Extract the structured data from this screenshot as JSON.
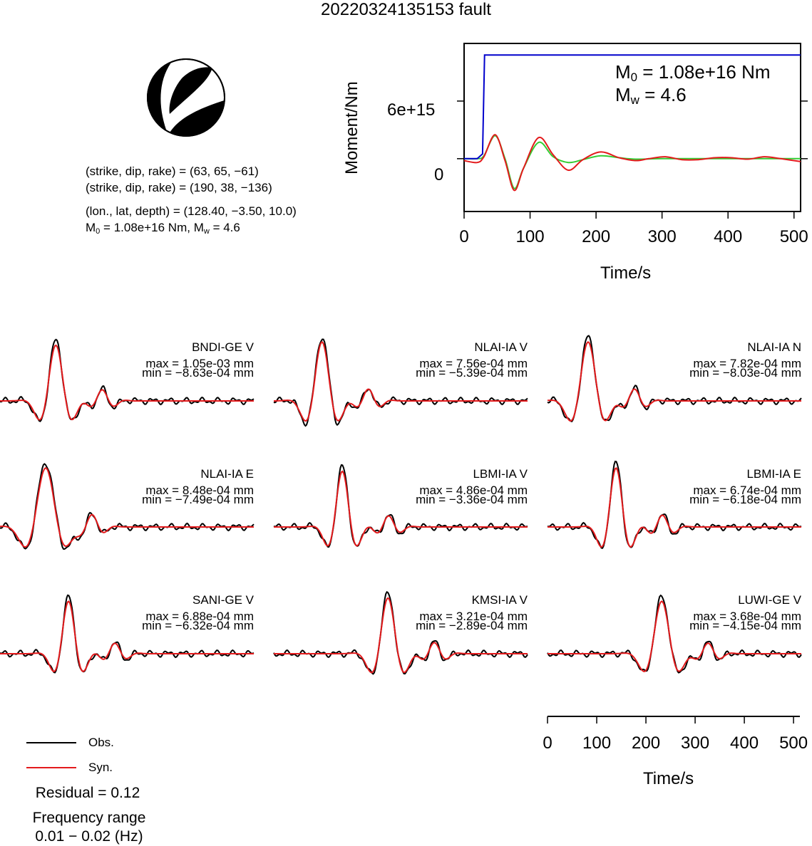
{
  "title": "20220324135153 fault",
  "focal": {
    "np1": "(strike, dip, rake) = (63, 65, −61)",
    "np2": "(strike, dip, rake) = (190, 38, −136)",
    "location": "(lon., lat, depth) = (128.40, −3.50, 10.0)",
    "m0_prefix": "M",
    "m0_sub": "0",
    "m0_mid": " = 1.08e+16 Nm, M",
    "mw_sub": "w",
    "mw_val": " = 4.6"
  },
  "moment_panel": {
    "ylabel": "Moment/Nm",
    "xlabel": "Time/s",
    "ytick_labels": [
      "6e+15",
      "0"
    ],
    "xtick_labels": [
      "0",
      "100",
      "200",
      "300",
      "400",
      "500"
    ],
    "m0_label_prefix": "M",
    "m0_label_sub": "0",
    "m0_label_val": " = 1.08e+16 Nm",
    "mw_label_prefix": "M",
    "mw_label_sub": "w",
    "mw_label_val": " = 4.6"
  },
  "waveform_axis": {
    "xlabel": "Time/s",
    "xtick_labels": [
      "0",
      "100",
      "200",
      "300",
      "400",
      "500"
    ]
  },
  "legend": {
    "obs": "Obs.",
    "syn": "Syn."
  },
  "residual": "Residual = 0.12",
  "freq_title": "Frequency range",
  "freq_range": "0.01 − 0.02 (Hz)",
  "colors": {
    "obs": "#000000",
    "syn": "#e31a1c",
    "moment": "#0000cc",
    "stf_green": "#33cc33"
  },
  "chart_data": [
    {
      "type": "line",
      "ylabel": "Moment/Nm",
      "xlabel": "Time/s",
      "xlim": [
        0,
        510
      ],
      "ylim": [
        -5500000000000000.0,
        1.2e+16
      ],
      "series": [
        {
          "color": "blue",
          "x": [
            0,
            20,
            28,
            31,
            510
          ],
          "y": [
            0,
            0,
            500000000000000.0,
            1.08e+16,
            1.08e+16
          ]
        },
        {
          "color": "red",
          "x": [
            0,
            20,
            30,
            47,
            62,
            76,
            90,
            113,
            135,
            158,
            180,
            207,
            235,
            260,
            280,
            305,
            330,
            355,
            380,
            405,
            430,
            455,
            480,
            510
          ],
          "y": [
            -200000000000000.0,
            -400000000000000.0,
            200000000000000.0,
            2500000000000000.0,
            -200000000000000.0,
            -3300000000000000.0,
            -1000000000000000.0,
            2200000000000000.0,
            400000000000000.0,
            -1200000000000000.0,
            -100000000000000.0,
            700000000000000.0,
            100000000000000.0,
            -200000000000000.0,
            0,
            200000000000000.0,
            -100000000000000.0,
            -100000000000000.0,
            100000000000000.0,
            100000000000000.0,
            -50000000000000.0,
            200000000000000.0,
            0,
            -300000000000000.0
          ]
        },
        {
          "color": "green",
          "x": [
            0,
            20,
            30,
            47,
            62,
            76,
            90,
            113,
            135,
            158,
            180,
            207,
            235,
            260,
            300,
            360,
            510
          ],
          "y": [
            0,
            0,
            300000000000000.0,
            2400000000000000.0,
            0,
            -3100000000000000.0,
            -1000000000000000.0,
            1700000000000000.0,
            200000000000000.0,
            -400000000000000.0,
            -100000000000000.0,
            300000000000000.0,
            100000000000000.0,
            -50000000000000.0,
            0,
            0,
            0
          ]
        }
      ]
    },
    {
      "type": "line",
      "traces": [
        {
          "station": "BNDI-GE V",
          "max": "max = 1.05e-03 mm",
          "min": "min = −8.63e-04 mm"
        },
        {
          "station": "NLAI-IA V",
          "max": "max = 7.56e-04 mm",
          "min": "min = −5.39e-04 mm"
        },
        {
          "station": "NLAI-IA N",
          "max": "max = 7.82e-04 mm",
          "min": "min = −8.03e-04 mm"
        },
        {
          "station": "NLAI-IA E",
          "max": "max = 8.48e-04 mm",
          "min": "min = −7.49e-04 mm"
        },
        {
          "station": "LBMI-IA V",
          "max": "max = 4.86e-04 mm",
          "min": "min = −3.36e-04 mm"
        },
        {
          "station": "LBMI-IA E",
          "max": "max = 6.74e-04 mm",
          "min": "min = −6.18e-04 mm"
        },
        {
          "station": "SANI-GE V",
          "max": "max = 6.88e-04 mm",
          "min": "min = −6.32e-04 mm"
        },
        {
          "station": "KMSI-IA V",
          "max": "max = 3.21e-04 mm",
          "min": "min = −2.89e-04 mm"
        },
        {
          "station": "LUWI-GE V",
          "max": "max = 3.68e-04 mm",
          "min": "min = −4.15e-04 mm"
        }
      ]
    }
  ]
}
